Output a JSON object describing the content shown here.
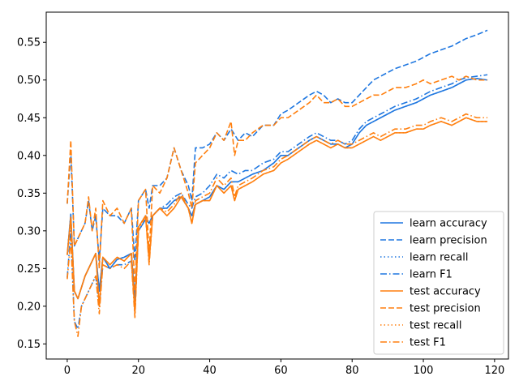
{
  "chart_data": {
    "type": "line",
    "title": "",
    "xlabel": "",
    "ylabel": "",
    "xlim": [
      -5.9,
      123.9
    ],
    "ylim": [
      0.13,
      0.59
    ],
    "xticks": [
      0,
      20,
      40,
      60,
      80,
      100,
      120
    ],
    "yticks": [
      0.15,
      0.2,
      0.25,
      0.3,
      0.35,
      0.4,
      0.45,
      0.5,
      0.55
    ],
    "ytick_labels": [
      "0.15",
      "0.20",
      "0.25",
      "0.30",
      "0.35",
      "0.40",
      "0.45",
      "0.50",
      "0.55"
    ],
    "grid": false,
    "legend_position": "lower-right",
    "colors": {
      "learn": "#1f77e0",
      "test": "#ff7f0e"
    },
    "series": [
      {
        "name": "learn accuracy",
        "group": "learn",
        "style": "solid",
        "x": [
          0,
          1,
          2,
          3,
          4,
          5,
          6,
          7,
          8,
          9,
          10,
          12,
          14,
          16,
          18,
          19,
          20,
          22,
          23,
          24,
          26,
          28,
          30,
          32,
          34,
          35,
          36,
          38,
          40,
          42,
          44,
          46,
          48,
          50,
          52,
          55,
          58,
          60,
          62,
          65,
          68,
          70,
          72,
          74,
          76,
          78,
          80,
          82,
          84,
          86,
          88,
          90,
          92,
          95,
          98,
          100,
          102,
          105,
          108,
          110,
          112,
          115,
          118
        ],
        "y": [
          0.268,
          0.322,
          0.22,
          0.21,
          0.225,
          0.24,
          0.25,
          0.26,
          0.27,
          0.22,
          0.265,
          0.25,
          0.262,
          0.265,
          0.27,
          0.21,
          0.3,
          0.315,
          0.31,
          0.32,
          0.33,
          0.33,
          0.34,
          0.345,
          0.33,
          0.32,
          0.335,
          0.34,
          0.345,
          0.36,
          0.355,
          0.365,
          0.365,
          0.37,
          0.375,
          0.38,
          0.39,
          0.4,
          0.4,
          0.41,
          0.42,
          0.425,
          0.42,
          0.415,
          0.415,
          0.41,
          0.415,
          0.43,
          0.44,
          0.445,
          0.45,
          0.455,
          0.46,
          0.465,
          0.47,
          0.475,
          0.48,
          0.485,
          0.49,
          0.495,
          0.5,
          0.502,
          0.5
        ]
      },
      {
        "name": "learn precision",
        "group": "learn",
        "style": "dashed",
        "x": [
          0,
          1,
          2,
          3,
          4,
          5,
          6,
          7,
          8,
          9,
          10,
          12,
          14,
          16,
          18,
          19,
          20,
          22,
          23,
          24,
          26,
          28,
          30,
          32,
          34,
          35,
          36,
          38,
          40,
          42,
          44,
          46,
          48,
          50,
          52,
          55,
          58,
          60,
          62,
          65,
          68,
          70,
          72,
          74,
          76,
          78,
          80,
          82,
          84,
          86,
          88,
          90,
          92,
          95,
          98,
          100,
          102,
          105,
          108,
          110,
          112,
          115,
          118
        ],
        "y": [
          0.336,
          0.405,
          0.28,
          0.29,
          0.3,
          0.31,
          0.34,
          0.3,
          0.32,
          0.26,
          0.33,
          0.32,
          0.32,
          0.31,
          0.33,
          0.26,
          0.34,
          0.355,
          0.33,
          0.36,
          0.36,
          0.37,
          0.41,
          0.38,
          0.36,
          0.34,
          0.41,
          0.41,
          0.415,
          0.43,
          0.42,
          0.435,
          0.42,
          0.43,
          0.425,
          0.44,
          0.44,
          0.455,
          0.46,
          0.47,
          0.48,
          0.485,
          0.48,
          0.47,
          0.475,
          0.47,
          0.47,
          0.48,
          0.49,
          0.5,
          0.505,
          0.51,
          0.515,
          0.52,
          0.525,
          0.53,
          0.535,
          0.54,
          0.545,
          0.55,
          0.555,
          0.56,
          0.566
        ]
      },
      {
        "name": "learn recall",
        "group": "learn",
        "style": "dotted",
        "x": [
          0,
          1,
          2,
          3,
          4,
          5,
          6,
          7,
          8,
          9,
          10,
          12,
          14,
          16,
          18,
          19,
          20,
          22,
          23,
          24,
          26,
          28,
          30,
          32,
          34,
          35,
          36,
          38,
          40,
          42,
          44,
          46,
          48,
          50,
          52,
          55,
          58,
          60,
          62,
          65,
          68,
          70,
          72,
          74,
          76,
          78,
          80,
          82,
          84,
          86,
          88,
          90,
          92,
          95,
          98,
          100,
          102,
          105,
          108,
          110,
          112,
          115,
          118
        ],
        "y": [
          0.268,
          0.322,
          0.22,
          0.21,
          0.225,
          0.24,
          0.25,
          0.26,
          0.27,
          0.22,
          0.265,
          0.25,
          0.262,
          0.265,
          0.27,
          0.21,
          0.3,
          0.315,
          0.31,
          0.32,
          0.33,
          0.33,
          0.34,
          0.345,
          0.33,
          0.32,
          0.335,
          0.34,
          0.345,
          0.36,
          0.355,
          0.365,
          0.365,
          0.37,
          0.375,
          0.38,
          0.39,
          0.4,
          0.4,
          0.41,
          0.42,
          0.425,
          0.42,
          0.415,
          0.415,
          0.41,
          0.415,
          0.43,
          0.44,
          0.445,
          0.45,
          0.455,
          0.46,
          0.465,
          0.47,
          0.475,
          0.48,
          0.485,
          0.49,
          0.495,
          0.5,
          0.502,
          0.5
        ]
      },
      {
        "name": "learn F1",
        "group": "learn",
        "style": "dashdot",
        "x": [
          0,
          1,
          2,
          3,
          4,
          5,
          6,
          7,
          8,
          9,
          10,
          12,
          14,
          16,
          18,
          19,
          20,
          22,
          23,
          24,
          26,
          28,
          30,
          32,
          34,
          35,
          36,
          38,
          40,
          42,
          44,
          46,
          48,
          50,
          52,
          55,
          58,
          60,
          62,
          65,
          68,
          70,
          72,
          74,
          76,
          78,
          80,
          82,
          84,
          86,
          88,
          90,
          92,
          95,
          98,
          100,
          102,
          105,
          108,
          110,
          112,
          115,
          118
        ],
        "y": [
          0.238,
          0.3,
          0.18,
          0.17,
          0.2,
          0.21,
          0.22,
          0.23,
          0.24,
          0.2,
          0.255,
          0.25,
          0.255,
          0.255,
          0.26,
          0.2,
          0.305,
          0.32,
          0.31,
          0.32,
          0.33,
          0.335,
          0.345,
          0.35,
          0.335,
          0.33,
          0.345,
          0.35,
          0.36,
          0.375,
          0.37,
          0.38,
          0.375,
          0.38,
          0.38,
          0.39,
          0.395,
          0.405,
          0.405,
          0.415,
          0.425,
          0.43,
          0.425,
          0.42,
          0.42,
          0.415,
          0.42,
          0.435,
          0.445,
          0.45,
          0.455,
          0.46,
          0.465,
          0.47,
          0.475,
          0.48,
          0.485,
          0.49,
          0.495,
          0.5,
          0.503,
          0.505,
          0.507
        ]
      },
      {
        "name": "test accuracy",
        "group": "test",
        "style": "solid",
        "x": [
          0,
          1,
          2,
          3,
          4,
          5,
          6,
          7,
          8,
          9,
          10,
          12,
          14,
          16,
          18,
          19,
          20,
          22,
          23,
          24,
          26,
          28,
          30,
          32,
          34,
          35,
          36,
          38,
          40,
          42,
          44,
          46,
          47,
          48,
          50,
          52,
          55,
          58,
          60,
          62,
          65,
          68,
          70,
          72,
          74,
          76,
          78,
          80,
          82,
          84,
          86,
          88,
          90,
          92,
          95,
          98,
          100,
          102,
          105,
          108,
          110,
          112,
          115,
          118
        ],
        "y": [
          0.268,
          0.318,
          0.22,
          0.21,
          0.225,
          0.24,
          0.25,
          0.26,
          0.27,
          0.2,
          0.265,
          0.255,
          0.265,
          0.26,
          0.27,
          0.19,
          0.305,
          0.32,
          0.26,
          0.32,
          0.33,
          0.32,
          0.33,
          0.345,
          0.33,
          0.31,
          0.335,
          0.34,
          0.34,
          0.36,
          0.35,
          0.36,
          0.34,
          0.355,
          0.36,
          0.365,
          0.375,
          0.38,
          0.39,
          0.395,
          0.405,
          0.415,
          0.42,
          0.415,
          0.41,
          0.415,
          0.41,
          0.41,
          0.415,
          0.42,
          0.425,
          0.42,
          0.425,
          0.43,
          0.43,
          0.435,
          0.435,
          0.44,
          0.445,
          0.44,
          0.445,
          0.45,
          0.445,
          0.445
        ]
      },
      {
        "name": "test precision",
        "group": "test",
        "style": "dashed",
        "x": [
          0,
          1,
          2,
          3,
          4,
          5,
          6,
          7,
          8,
          9,
          10,
          12,
          14,
          16,
          18,
          19,
          20,
          22,
          23,
          24,
          26,
          28,
          30,
          32,
          34,
          35,
          36,
          38,
          40,
          42,
          44,
          46,
          47,
          48,
          50,
          52,
          55,
          58,
          60,
          62,
          65,
          68,
          70,
          72,
          74,
          76,
          78,
          80,
          82,
          84,
          86,
          88,
          90,
          92,
          95,
          98,
          100,
          102,
          105,
          108,
          110,
          112,
          115,
          118
        ],
        "y": [
          0.336,
          0.42,
          0.28,
          0.29,
          0.3,
          0.31,
          0.345,
          0.3,
          0.33,
          0.25,
          0.34,
          0.32,
          0.33,
          0.31,
          0.33,
          0.22,
          0.34,
          0.355,
          0.27,
          0.36,
          0.35,
          0.37,
          0.41,
          0.38,
          0.35,
          0.33,
          0.39,
          0.4,
          0.41,
          0.43,
          0.42,
          0.445,
          0.4,
          0.42,
          0.42,
          0.43,
          0.44,
          0.44,
          0.45,
          0.45,
          0.46,
          0.47,
          0.48,
          0.47,
          0.47,
          0.475,
          0.465,
          0.465,
          0.47,
          0.475,
          0.48,
          0.48,
          0.485,
          0.49,
          0.49,
          0.495,
          0.5,
          0.495,
          0.5,
          0.505,
          0.5,
          0.505,
          0.5,
          0.5
        ]
      },
      {
        "name": "test recall",
        "group": "test",
        "style": "dotted",
        "x": [
          0,
          1,
          2,
          3,
          4,
          5,
          6,
          7,
          8,
          9,
          10,
          12,
          14,
          16,
          18,
          19,
          20,
          22,
          23,
          24,
          26,
          28,
          30,
          32,
          34,
          35,
          36,
          38,
          40,
          42,
          44,
          46,
          47,
          48,
          50,
          52,
          55,
          58,
          60,
          62,
          65,
          68,
          70,
          72,
          74,
          76,
          78,
          80,
          82,
          84,
          86,
          88,
          90,
          92,
          95,
          98,
          100,
          102,
          105,
          108,
          110,
          112,
          115,
          118
        ],
        "y": [
          0.268,
          0.318,
          0.22,
          0.21,
          0.225,
          0.24,
          0.25,
          0.26,
          0.27,
          0.2,
          0.265,
          0.255,
          0.265,
          0.26,
          0.27,
          0.19,
          0.305,
          0.32,
          0.26,
          0.32,
          0.33,
          0.32,
          0.33,
          0.345,
          0.33,
          0.31,
          0.335,
          0.34,
          0.34,
          0.36,
          0.35,
          0.36,
          0.34,
          0.355,
          0.36,
          0.365,
          0.375,
          0.38,
          0.39,
          0.395,
          0.405,
          0.415,
          0.42,
          0.415,
          0.41,
          0.415,
          0.41,
          0.41,
          0.415,
          0.42,
          0.425,
          0.42,
          0.425,
          0.43,
          0.43,
          0.435,
          0.435,
          0.44,
          0.445,
          0.44,
          0.445,
          0.45,
          0.445,
          0.445
        ]
      },
      {
        "name": "test F1",
        "group": "test",
        "style": "dashdot",
        "x": [
          0,
          1,
          2,
          3,
          4,
          5,
          6,
          7,
          8,
          9,
          10,
          12,
          14,
          16,
          18,
          19,
          20,
          22,
          23,
          24,
          26,
          28,
          30,
          32,
          34,
          35,
          36,
          38,
          40,
          42,
          44,
          46,
          47,
          48,
          50,
          52,
          55,
          58,
          60,
          62,
          65,
          68,
          70,
          72,
          74,
          76,
          78,
          80,
          82,
          84,
          86,
          88,
          90,
          92,
          95,
          98,
          100,
          102,
          105,
          108,
          110,
          112,
          115,
          118
        ],
        "y": [
          0.236,
          0.29,
          0.18,
          0.16,
          0.2,
          0.21,
          0.22,
          0.23,
          0.24,
          0.19,
          0.255,
          0.25,
          0.255,
          0.25,
          0.26,
          0.185,
          0.3,
          0.32,
          0.255,
          0.32,
          0.33,
          0.325,
          0.335,
          0.35,
          0.33,
          0.31,
          0.34,
          0.345,
          0.35,
          0.37,
          0.36,
          0.37,
          0.345,
          0.36,
          0.365,
          0.37,
          0.38,
          0.385,
          0.395,
          0.4,
          0.41,
          0.42,
          0.425,
          0.42,
          0.415,
          0.42,
          0.415,
          0.415,
          0.42,
          0.425,
          0.43,
          0.425,
          0.43,
          0.435,
          0.435,
          0.44,
          0.44,
          0.445,
          0.45,
          0.445,
          0.45,
          0.455,
          0.45,
          0.45
        ]
      }
    ]
  }
}
